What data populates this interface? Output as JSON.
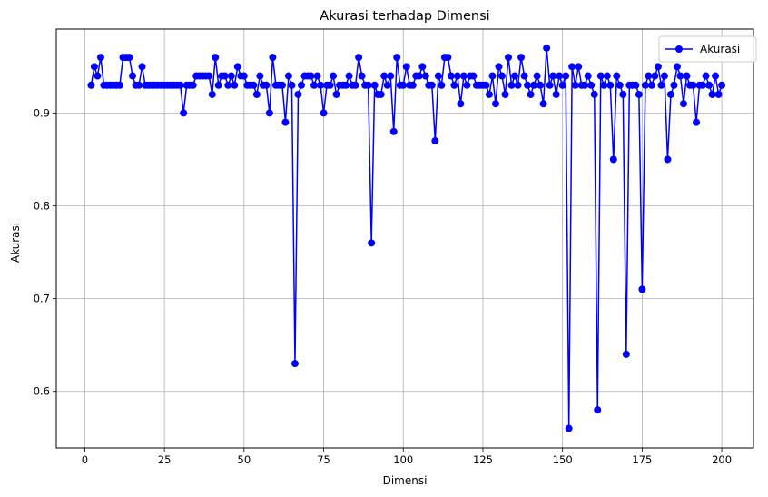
{
  "chart_data": {
    "type": "line",
    "title": "Akurasi terhadap Dimensi",
    "xlabel": "Dimensi",
    "ylabel": "Akurasi",
    "xlim": [
      -8.95,
      209.95
    ],
    "ylim": [
      0.539,
      0.9905
    ],
    "xticks": [
      0,
      25,
      50,
      75,
      100,
      125,
      150,
      175,
      200
    ],
    "yticks": [
      0.6,
      0.7,
      0.8,
      0.9
    ],
    "ytick_labels": [
      "0.6",
      "0.7",
      "0.8",
      "0.9"
    ],
    "grid": true,
    "legend_position": "top-right",
    "color": "#0000ff",
    "series": [
      {
        "name": "Akurasi",
        "x": [
          2,
          3,
          4,
          5,
          6,
          7,
          8,
          9,
          10,
          11,
          12,
          13,
          14,
          15,
          16,
          17,
          18,
          19,
          20,
          21,
          22,
          23,
          24,
          25,
          26,
          27,
          28,
          29,
          30,
          31,
          32,
          33,
          34,
          35,
          36,
          37,
          38,
          39,
          40,
          41,
          42,
          43,
          44,
          45,
          46,
          47,
          48,
          49,
          50,
          51,
          52,
          53,
          54,
          55,
          56,
          57,
          58,
          59,
          60,
          61,
          62,
          63,
          64,
          65,
          66,
          67,
          68,
          69,
          70,
          71,
          72,
          73,
          74,
          75,
          76,
          77,
          78,
          79,
          80,
          81,
          82,
          83,
          84,
          85,
          86,
          87,
          88,
          89,
          90,
          91,
          92,
          93,
          94,
          95,
          96,
          97,
          98,
          99,
          100,
          101,
          102,
          103,
          104,
          105,
          106,
          107,
          108,
          109,
          110,
          111,
          112,
          113,
          114,
          115,
          116,
          117,
          118,
          119,
          120,
          121,
          122,
          123,
          124,
          125,
          126,
          127,
          128,
          129,
          130,
          131,
          132,
          133,
          134,
          135,
          136,
          137,
          138,
          139,
          140,
          141,
          142,
          143,
          144,
          145,
          146,
          147,
          148,
          149,
          150,
          151,
          152,
          153,
          154,
          155,
          156,
          157,
          158,
          159,
          160,
          161,
          162,
          163,
          164,
          165,
          166,
          167,
          168,
          169,
          170,
          171,
          172,
          173,
          174,
          175,
          176,
          177,
          178,
          179,
          180,
          181,
          182,
          183,
          184,
          185,
          186,
          187,
          188,
          189,
          190,
          191,
          192,
          193,
          194,
          195,
          196,
          197,
          198,
          199,
          200
        ],
        "y": [
          0.93,
          0.95,
          0.94,
          0.96,
          0.93,
          0.93,
          0.93,
          0.93,
          0.93,
          0.93,
          0.96,
          0.96,
          0.96,
          0.94,
          0.93,
          0.93,
          0.95,
          0.93,
          0.93,
          0.93,
          0.93,
          0.93,
          0.93,
          0.93,
          0.93,
          0.93,
          0.93,
          0.93,
          0.93,
          0.9,
          0.93,
          0.93,
          0.93,
          0.94,
          0.94,
          0.94,
          0.94,
          0.94,
          0.92,
          0.96,
          0.93,
          0.94,
          0.94,
          0.93,
          0.94,
          0.93,
          0.95,
          0.94,
          0.94,
          0.93,
          0.93,
          0.93,
          0.92,
          0.94,
          0.93,
          0.93,
          0.9,
          0.96,
          0.93,
          0.93,
          0.93,
          0.89,
          0.94,
          0.93,
          0.63,
          0.92,
          0.93,
          0.94,
          0.94,
          0.94,
          0.93,
          0.94,
          0.93,
          0.9,
          0.93,
          0.93,
          0.94,
          0.92,
          0.93,
          0.93,
          0.93,
          0.94,
          0.93,
          0.93,
          0.96,
          0.94,
          0.93,
          0.93,
          0.76,
          0.93,
          0.92,
          0.92,
          0.94,
          0.93,
          0.94,
          0.88,
          0.96,
          0.93,
          0.93,
          0.95,
          0.93,
          0.93,
          0.94,
          0.94,
          0.95,
          0.94,
          0.93,
          0.93,
          0.87,
          0.94,
          0.93,
          0.96,
          0.96,
          0.94,
          0.93,
          0.94,
          0.91,
          0.94,
          0.93,
          0.94,
          0.94,
          0.93,
          0.93,
          0.93,
          0.93,
          0.92,
          0.94,
          0.91,
          0.95,
          0.94,
          0.92,
          0.96,
          0.93,
          0.94,
          0.93,
          0.96,
          0.94,
          0.93,
          0.92,
          0.93,
          0.94,
          0.93,
          0.91,
          0.97,
          0.93,
          0.94,
          0.92,
          0.94,
          0.93,
          0.94,
          0.56,
          0.95,
          0.93,
          0.95,
          0.93,
          0.93,
          0.94,
          0.93,
          0.92,
          0.58,
          0.94,
          0.93,
          0.94,
          0.93,
          0.85,
          0.94,
          0.93,
          0.92,
          0.64,
          0.93,
          0.93,
          0.93,
          0.92,
          0.71,
          0.93,
          0.94,
          0.93,
          0.94,
          0.95,
          0.93,
          0.94,
          0.85,
          0.92,
          0.93,
          0.95,
          0.94,
          0.91,
          0.94,
          0.93,
          0.93,
          0.89,
          0.93,
          0.93,
          0.94,
          0.93,
          0.92,
          0.94,
          0.92,
          0.93
        ]
      }
    ]
  }
}
